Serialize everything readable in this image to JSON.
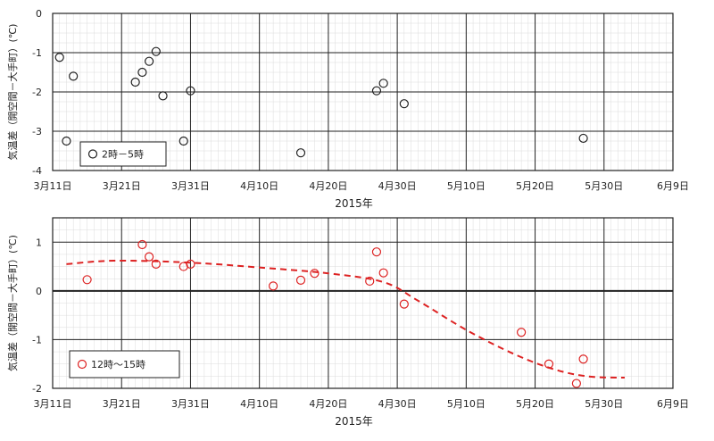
{
  "chart_data": [
    {
      "type": "scatter",
      "xlabel": "2015年",
      "ylabel": "気温差（開空間－大手町）(℃)",
      "x_ticks": [
        "3月11日",
        "3月21日",
        "3月31日",
        "4月10日",
        "4月20日",
        "4月30日",
        "5月10日",
        "5月20日",
        "5月30日",
        "6月9日"
      ],
      "xlim": [
        "2015-03-11",
        "2015-06-09"
      ],
      "ylim": [
        -4,
        0
      ],
      "y_ticks": [
        "0",
        "-1",
        "-2",
        "-3",
        "-4"
      ],
      "grid": true,
      "legend_position": "bottom-left",
      "series": [
        {
          "name": "2時－5時",
          "color": "#222222",
          "marker": "open-circle",
          "points": [
            {
              "x": "2015-03-12",
              "y": -1.12
            },
            {
              "x": "2015-03-13",
              "y": -3.25
            },
            {
              "x": "2015-03-14",
              "y": -1.6
            },
            {
              "x": "2015-03-23",
              "y": -1.75
            },
            {
              "x": "2015-03-24",
              "y": -1.5
            },
            {
              "x": "2015-03-25",
              "y": -1.22
            },
            {
              "x": "2015-03-26",
              "y": -0.97
            },
            {
              "x": "2015-03-27",
              "y": -2.1
            },
            {
              "x": "2015-03-30",
              "y": -3.25
            },
            {
              "x": "2015-03-31",
              "y": -1.97
            },
            {
              "x": "2015-04-16",
              "y": -3.55
            },
            {
              "x": "2015-04-27",
              "y": -1.97
            },
            {
              "x": "2015-04-28",
              "y": -1.78
            },
            {
              "x": "2015-05-01",
              "y": -2.3
            },
            {
              "x": "2015-05-27",
              "y": -3.18
            }
          ]
        }
      ]
    },
    {
      "type": "scatter",
      "xlabel": "2015年",
      "ylabel": "気温差（開空間－大手町）(℃)",
      "x_ticks": [
        "3月11日",
        "3月21日",
        "3月31日",
        "4月10日",
        "4月20日",
        "4月30日",
        "5月10日",
        "5月20日",
        "5月30日",
        "6月9日"
      ],
      "xlim": [
        "2015-03-11",
        "2015-06-09"
      ],
      "ylim": [
        -2,
        1.5
      ],
      "y_ticks": [
        "1",
        "0",
        "-1",
        "-2"
      ],
      "grid": true,
      "legend_position": "bottom-left",
      "series": [
        {
          "name": "12時～15時",
          "color": "#dd2222",
          "marker": "open-circle",
          "points": [
            {
              "x": "2015-03-16",
              "y": 0.23
            },
            {
              "x": "2015-03-24",
              "y": 0.95
            },
            {
              "x": "2015-03-25",
              "y": 0.7
            },
            {
              "x": "2015-03-26",
              "y": 0.55
            },
            {
              "x": "2015-03-30",
              "y": 0.5
            },
            {
              "x": "2015-03-31",
              "y": 0.55
            },
            {
              "x": "2015-04-12",
              "y": 0.1
            },
            {
              "x": "2015-04-16",
              "y": 0.22
            },
            {
              "x": "2015-04-18",
              "y": 0.36
            },
            {
              "x": "2015-04-26",
              "y": 0.2
            },
            {
              "x": "2015-04-27",
              "y": 0.8
            },
            {
              "x": "2015-04-28",
              "y": 0.37
            },
            {
              "x": "2015-05-01",
              "y": -0.27
            },
            {
              "x": "2015-05-18",
              "y": -0.85
            },
            {
              "x": "2015-05-22",
              "y": -1.5
            },
            {
              "x": "2015-05-26",
              "y": -1.9
            },
            {
              "x": "2015-05-27",
              "y": -1.4
            }
          ]
        },
        {
          "color": "#dd2222",
          "style": "dashed-line",
          "points": [
            {
              "x": "2015-03-13",
              "y": 0.55
            },
            {
              "x": "2015-03-20",
              "y": 0.62
            },
            {
              "x": "2015-03-31",
              "y": 0.58
            },
            {
              "x": "2015-04-10",
              "y": 0.48
            },
            {
              "x": "2015-04-20",
              "y": 0.36
            },
            {
              "x": "2015-04-28",
              "y": 0.18
            },
            {
              "x": "2015-05-03",
              "y": -0.2
            },
            {
              "x": "2015-05-10",
              "y": -0.8
            },
            {
              "x": "2015-05-17",
              "y": -1.3
            },
            {
              "x": "2015-05-23",
              "y": -1.62
            },
            {
              "x": "2015-05-28",
              "y": -1.76
            },
            {
              "x": "2015-06-02",
              "y": -1.78
            }
          ]
        }
      ]
    }
  ]
}
